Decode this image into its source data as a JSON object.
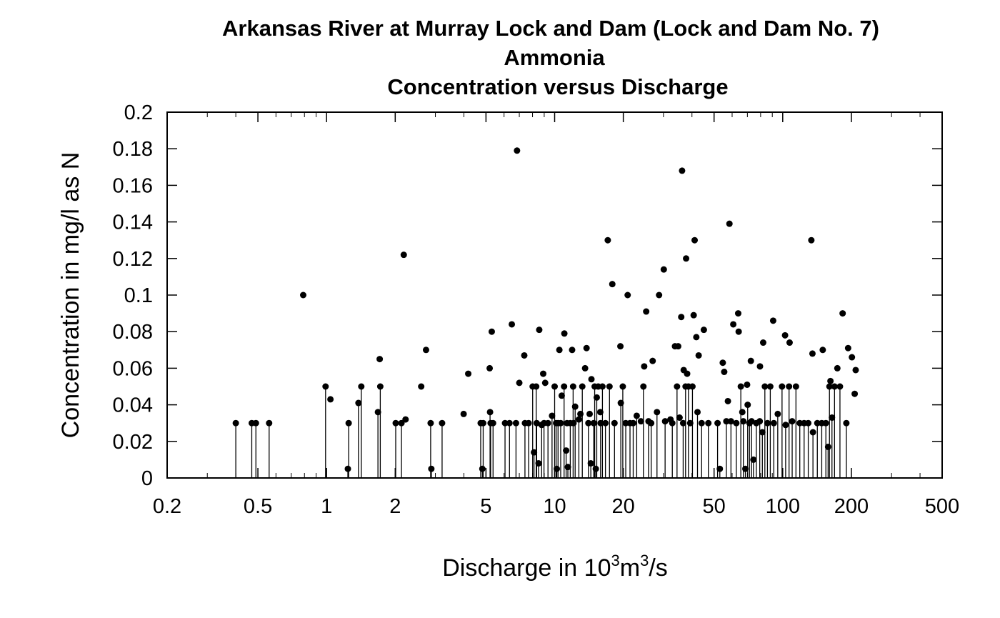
{
  "chart_data": {
    "type": "scatter",
    "title_lines": [
      "Arkansas River at Murray Lock and Dam (Lock and Dam No. 7)",
      "Ammonia",
      "Concentration versus Discharge"
    ],
    "xlabel": {
      "pre": "Discharge in 10",
      "sup1": "3",
      "mid": "m",
      "sup2": "3",
      "post": "/s"
    },
    "ylabel": "Concentration in mg/l as N",
    "x_scale": "log",
    "xlim": [
      0.2,
      500
    ],
    "ylim": [
      0,
      0.2
    ],
    "x_ticks": [
      {
        "value": 0.2,
        "label": "0.2"
      },
      {
        "value": 0.5,
        "label": "0.5"
      },
      {
        "value": 1,
        "label": "1"
      },
      {
        "value": 2,
        "label": "2"
      },
      {
        "value": 5,
        "label": "5"
      },
      {
        "value": 10,
        "label": "10"
      },
      {
        "value": 20,
        "label": "20"
      },
      {
        "value": 50,
        "label": "50"
      },
      {
        "value": 100,
        "label": "100"
      },
      {
        "value": 200,
        "label": "200"
      },
      {
        "value": 500,
        "label": "500"
      }
    ],
    "y_ticks": [
      {
        "value": 0,
        "label": "0"
      },
      {
        "value": 0.02,
        "label": "0.02"
      },
      {
        "value": 0.04,
        "label": "0.04"
      },
      {
        "value": 0.06,
        "label": "0.06"
      },
      {
        "value": 0.08,
        "label": "0.08"
      },
      {
        "value": 0.1,
        "label": "0.1"
      },
      {
        "value": 0.12,
        "label": "0.12"
      },
      {
        "value": 0.14,
        "label": "0.14"
      },
      {
        "value": 0.16,
        "label": "0.16"
      },
      {
        "value": 0.18,
        "label": "0.18"
      },
      {
        "value": 0.2,
        "label": "0.2"
      }
    ],
    "censored_points": [
      [
        0.4,
        0.03
      ],
      [
        0.47,
        0.03
      ],
      [
        0.49,
        0.03
      ],
      [
        0.56,
        0.03
      ],
      [
        0.99,
        0.05
      ],
      [
        1.24,
        0.005
      ],
      [
        1.25,
        0.03
      ],
      [
        1.38,
        0.041
      ],
      [
        1.42,
        0.05
      ],
      [
        1.68,
        0.036
      ],
      [
        1.72,
        0.05
      ],
      [
        2.01,
        0.03
      ],
      [
        2.13,
        0.03
      ],
      [
        2.88,
        0.005
      ],
      [
        2.86,
        0.03
      ],
      [
        3.21,
        0.03
      ],
      [
        4.74,
        0.03
      ],
      [
        4.82,
        0.005
      ],
      [
        4.86,
        0.03
      ],
      [
        5.21,
        0.036
      ],
      [
        5.24,
        0.03
      ],
      [
        5.37,
        0.03
      ],
      [
        6.06,
        0.03
      ],
      [
        6.34,
        0.03
      ],
      [
        6.77,
        0.03
      ],
      [
        7.41,
        0.03
      ],
      [
        7.69,
        0.03
      ],
      [
        8.01,
        0.05
      ],
      [
        8.12,
        0.014
      ],
      [
        8.3,
        0.05
      ],
      [
        8.34,
        0.03
      ],
      [
        8.5,
        0.008
      ],
      [
        8.77,
        0.029
      ],
      [
        8.98,
        0.03
      ],
      [
        9.35,
        0.03
      ],
      [
        9.74,
        0.034
      ],
      [
        10.0,
        0.05
      ],
      [
        10.15,
        0.03
      ],
      [
        10.22,
        0.005
      ],
      [
        10.35,
        0.03
      ],
      [
        10.63,
        0.03
      ],
      [
        11.0,
        0.05
      ],
      [
        11.23,
        0.015
      ],
      [
        11.43,
        0.006
      ],
      [
        11.71,
        0.03
      ],
      [
        12.05,
        0.05
      ],
      [
        12.3,
        0.039
      ],
      [
        12.77,
        0.032
      ],
      [
        13.22,
        0.05
      ],
      [
        14.06,
        0.03
      ],
      [
        14.41,
        0.008
      ],
      [
        14.84,
        0.03
      ],
      [
        14.98,
        0.05
      ],
      [
        15.15,
        0.005
      ],
      [
        15.3,
        0.044
      ],
      [
        15.9,
        0.03
      ],
      [
        16.2,
        0.05
      ],
      [
        16.7,
        0.03
      ],
      [
        17.4,
        0.05
      ],
      [
        18.3,
        0.03
      ],
      [
        19.5,
        0.041
      ],
      [
        19.9,
        0.05
      ],
      [
        20.5,
        0.03
      ],
      [
        21.4,
        0.03
      ],
      [
        22.1,
        0.03
      ],
      [
        22.9,
        0.034
      ],
      [
        24.5,
        0.05
      ],
      [
        25.8,
        0.031
      ],
      [
        26.5,
        0.03
      ],
      [
        28.1,
        0.036
      ],
      [
        30.5,
        0.031
      ],
      [
        32.8,
        0.03
      ],
      [
        34.4,
        0.05
      ],
      [
        36.6,
        0.03
      ],
      [
        37.5,
        0.05
      ],
      [
        38.6,
        0.05
      ],
      [
        40.2,
        0.05
      ],
      [
        42.3,
        0.036
      ],
      [
        44.1,
        0.03
      ],
      [
        47.2,
        0.03
      ],
      [
        51.8,
        0.03
      ],
      [
        53.0,
        0.005
      ],
      [
        56.6,
        0.031
      ],
      [
        59.3,
        0.031
      ],
      [
        62.6,
        0.03
      ],
      [
        65.5,
        0.05
      ],
      [
        67.2,
        0.031
      ],
      [
        68.6,
        0.005
      ],
      [
        70.2,
        0.04
      ],
      [
        71.5,
        0.03
      ],
      [
        73.0,
        0.031
      ],
      [
        74.4,
        0.01
      ],
      [
        76.6,
        0.03
      ],
      [
        79.3,
        0.031
      ],
      [
        81.4,
        0.025
      ],
      [
        83.5,
        0.05
      ],
      [
        85.7,
        0.03
      ],
      [
        88.2,
        0.05
      ],
      [
        91.4,
        0.03
      ],
      [
        95.1,
        0.035
      ],
      [
        99.3,
        0.05
      ],
      [
        103.0,
        0.029
      ],
      [
        106.6,
        0.05
      ],
      [
        110.0,
        0.031
      ],
      [
        114.3,
        0.05
      ],
      [
        118.8,
        0.03
      ],
      [
        124.1,
        0.03
      ],
      [
        129.4,
        0.03
      ],
      [
        135.7,
        0.025
      ],
      [
        141.8,
        0.03
      ],
      [
        148.3,
        0.03
      ],
      [
        154.6,
        0.03
      ],
      [
        158.1,
        0.017
      ],
      [
        160.3,
        0.05
      ],
      [
        164.4,
        0.033
      ],
      [
        168.7,
        0.05
      ],
      [
        178.2,
        0.05
      ],
      [
        190.1,
        0.03
      ]
    ],
    "detected_points": [
      [
        0.79,
        0.1
      ],
      [
        1.04,
        0.043
      ],
      [
        1.71,
        0.065
      ],
      [
        2.22,
        0.032
      ],
      [
        2.18,
        0.122
      ],
      [
        2.6,
        0.05
      ],
      [
        2.73,
        0.07
      ],
      [
        3.99,
        0.035
      ],
      [
        4.18,
        0.057
      ],
      [
        5.19,
        0.06
      ],
      [
        5.3,
        0.08
      ],
      [
        6.49,
        0.084
      ],
      [
        6.84,
        0.179
      ],
      [
        7.0,
        0.052
      ],
      [
        7.36,
        0.067
      ],
      [
        8.56,
        0.081
      ],
      [
        8.91,
        0.057
      ],
      [
        9.09,
        0.052
      ],
      [
        10.49,
        0.07
      ],
      [
        10.74,
        0.045
      ],
      [
        11.03,
        0.079
      ],
      [
        11.33,
        0.03
      ],
      [
        11.93,
        0.07
      ],
      [
        12.1,
        0.03
      ],
      [
        12.97,
        0.035
      ],
      [
        13.6,
        0.06
      ],
      [
        13.8,
        0.071
      ],
      [
        14.24,
        0.035
      ],
      [
        14.5,
        0.054
      ],
      [
        15.53,
        0.05
      ],
      [
        15.85,
        0.036
      ],
      [
        17.1,
        0.13
      ],
      [
        17.9,
        0.106
      ],
      [
        19.42,
        0.072
      ],
      [
        20.9,
        0.1
      ],
      [
        23.9,
        0.031
      ],
      [
        24.7,
        0.061
      ],
      [
        25.2,
        0.091
      ],
      [
        26.9,
        0.064
      ],
      [
        28.7,
        0.1
      ],
      [
        30.1,
        0.114
      ],
      [
        32.2,
        0.032
      ],
      [
        33.7,
        0.072
      ],
      [
        34.8,
        0.072
      ],
      [
        35.3,
        0.033
      ],
      [
        35.9,
        0.088
      ],
      [
        36.2,
        0.168
      ],
      [
        36.8,
        0.059
      ],
      [
        37.7,
        0.12
      ],
      [
        38.1,
        0.057
      ],
      [
        39.3,
        0.03
      ],
      [
        40.7,
        0.089
      ],
      [
        41.1,
        0.13
      ],
      [
        41.8,
        0.077
      ],
      [
        42.8,
        0.067
      ],
      [
        45.1,
        0.081
      ],
      [
        54.6,
        0.063
      ],
      [
        55.4,
        0.058
      ],
      [
        57.5,
        0.042
      ],
      [
        58.4,
        0.139
      ],
      [
        60.7,
        0.084
      ],
      [
        63.8,
        0.09
      ],
      [
        64.1,
        0.08
      ],
      [
        66.5,
        0.036
      ],
      [
        69.8,
        0.051
      ],
      [
        72.5,
        0.064
      ],
      [
        79.5,
        0.061
      ],
      [
        82.1,
        0.074
      ],
      [
        90.8,
        0.086
      ],
      [
        102.4,
        0.078
      ],
      [
        107.2,
        0.074
      ],
      [
        133.5,
        0.13
      ],
      [
        135.0,
        0.068
      ],
      [
        149.8,
        0.07
      ],
      [
        161.9,
        0.053
      ],
      [
        173.6,
        0.06
      ],
      [
        183.1,
        0.09
      ],
      [
        193.5,
        0.071
      ],
      [
        201.1,
        0.066
      ],
      [
        206.8,
        0.046
      ],
      [
        208.9,
        0.059
      ]
    ],
    "grid": false,
    "legend": "none",
    "colors": {
      "marks": "#000000",
      "background": "#ffffff"
    }
  }
}
